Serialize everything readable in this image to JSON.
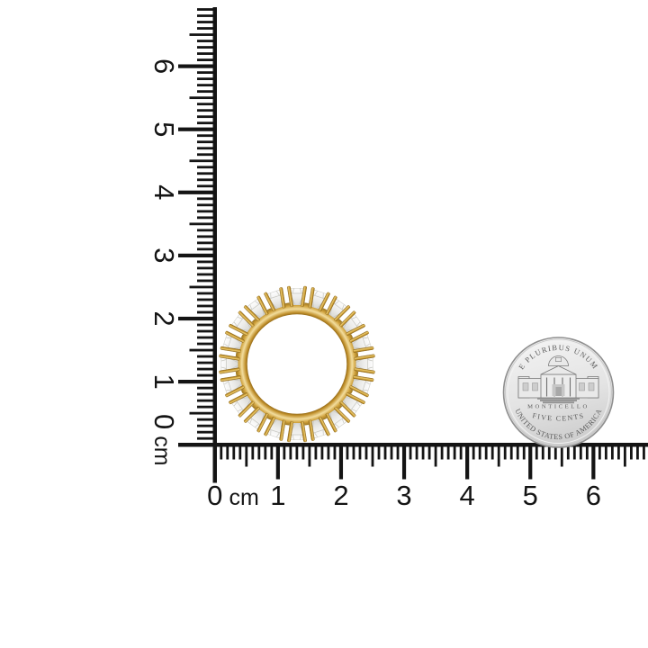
{
  "scene": {
    "description": "Product photo of a yellow gold shared-prong diamond eternity band ring shown to scale beside a US nickel coin, with centimeter rulers along the left and bottom edges",
    "background_color": "#ffffff"
  },
  "rulers": {
    "unit_label": "cm",
    "color": "#141414",
    "horizontal": {
      "labels": [
        "0",
        "1",
        "2",
        "3",
        "4",
        "5",
        "6"
      ]
    },
    "vertical": {
      "labels": [
        "0",
        "1",
        "2",
        "3",
        "4",
        "5",
        "6"
      ]
    }
  },
  "ring": {
    "name": "gold-diamond-eternity-band",
    "stone_count": 20,
    "band_color": "#d9a83b",
    "band_highlight_color": "#f2dd9e",
    "band_shadow_color": "#8a6112",
    "prong_color": "#d1a33a",
    "stone_color": "#f6f6f4",
    "stone_facet_color": "#c6c6c0"
  },
  "coin": {
    "name": "us-nickel-reverse",
    "top_text": "E PLURIBUS UNUM",
    "building_label": "MONTICELLO",
    "denomination_text": "FIVE CENTS",
    "bottom_text": "UNITED STATES OF AMERICA",
    "face_color": "#e9e9e9",
    "rim_color": "#8f8f8f",
    "engraving_color": "#5a5a5a"
  }
}
